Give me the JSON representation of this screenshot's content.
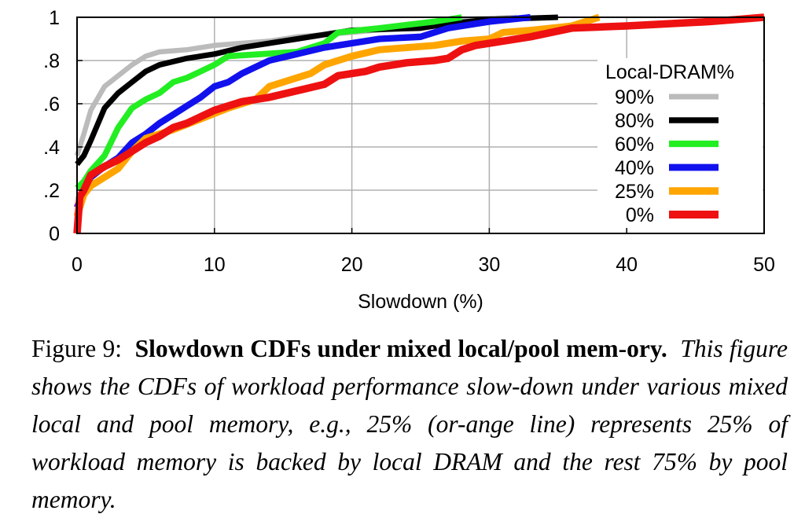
{
  "chart_data": {
    "type": "line",
    "xlabel": "Slowdown (%)",
    "ylabel": "",
    "xlim": [
      0,
      50
    ],
    "ylim": [
      0,
      1
    ],
    "x_ticks": [
      0,
      10,
      20,
      30,
      40,
      50
    ],
    "x_tick_labels": [
      "0",
      "10",
      "20",
      "30",
      "40",
      "50"
    ],
    "y_ticks": [
      0,
      0.2,
      0.4,
      0.6,
      0.8,
      1
    ],
    "y_tick_labels": [
      "0",
      ".2",
      ".4",
      ".6",
      ".8",
      "1"
    ],
    "grid": true,
    "legend_title": "Local-DRAM%",
    "legend_position": "right",
    "series": [
      {
        "name": "90%",
        "color": "#bbbbbb",
        "points": [
          [
            0,
            0.36
          ],
          [
            0.5,
            0.46
          ],
          [
            1,
            0.57
          ],
          [
            2,
            0.68
          ],
          [
            3,
            0.73
          ],
          [
            4,
            0.78
          ],
          [
            5,
            0.82
          ],
          [
            6,
            0.84
          ],
          [
            8,
            0.85
          ],
          [
            10,
            0.87
          ],
          [
            14,
            0.89
          ],
          [
            16,
            0.91
          ],
          [
            20,
            0.93
          ],
          [
            25,
            0.96
          ],
          [
            28,
            0.99
          ],
          [
            32,
            1.0
          ]
        ]
      },
      {
        "name": "80%",
        "color": "#000000",
        "points": [
          [
            0,
            0.32
          ],
          [
            0.5,
            0.36
          ],
          [
            1,
            0.43
          ],
          [
            2,
            0.58
          ],
          [
            3,
            0.65
          ],
          [
            4,
            0.7
          ],
          [
            5,
            0.75
          ],
          [
            6,
            0.78
          ],
          [
            8,
            0.81
          ],
          [
            10,
            0.83
          ],
          [
            12,
            0.86
          ],
          [
            14,
            0.88
          ],
          [
            17,
            0.91
          ],
          [
            20,
            0.94
          ],
          [
            25,
            0.95
          ],
          [
            27,
            0.97
          ],
          [
            30,
            0.99
          ],
          [
            35,
            1.0
          ]
        ]
      },
      {
        "name": "60%",
        "color": "#22ee22",
        "points": [
          [
            0,
            0.21
          ],
          [
            0.5,
            0.24
          ],
          [
            1,
            0.29
          ],
          [
            2,
            0.36
          ],
          [
            3,
            0.49
          ],
          [
            4,
            0.58
          ],
          [
            5,
            0.62
          ],
          [
            6,
            0.65
          ],
          [
            7,
            0.7
          ],
          [
            8,
            0.72
          ],
          [
            9,
            0.75
          ],
          [
            10,
            0.78
          ],
          [
            11,
            0.82
          ],
          [
            16,
            0.84
          ],
          [
            18,
            0.88
          ],
          [
            19,
            0.93
          ],
          [
            22,
            0.95
          ],
          [
            26,
            0.98
          ],
          [
            28,
            1.0
          ]
        ]
      },
      {
        "name": "40%",
        "color": "#1111ee",
        "points": [
          [
            0,
            0.12
          ],
          [
            0.5,
            0.2
          ],
          [
            1,
            0.26
          ],
          [
            2,
            0.31
          ],
          [
            3,
            0.35
          ],
          [
            4,
            0.42
          ],
          [
            5,
            0.46
          ],
          [
            6,
            0.51
          ],
          [
            7,
            0.55
          ],
          [
            8,
            0.59
          ],
          [
            9,
            0.63
          ],
          [
            10,
            0.68
          ],
          [
            11,
            0.7
          ],
          [
            12,
            0.74
          ],
          [
            13,
            0.77
          ],
          [
            14,
            0.8
          ],
          [
            16,
            0.83
          ],
          [
            18,
            0.86
          ],
          [
            20,
            0.88
          ],
          [
            22,
            0.9
          ],
          [
            25,
            0.91
          ],
          [
            27,
            0.95
          ],
          [
            30,
            0.98
          ],
          [
            33,
            1.0
          ]
        ]
      },
      {
        "name": "25%",
        "color": "#ffa500",
        "points": [
          [
            0,
            0.08
          ],
          [
            0.5,
            0.18
          ],
          [
            1,
            0.22
          ],
          [
            2,
            0.26
          ],
          [
            3,
            0.3
          ],
          [
            4,
            0.38
          ],
          [
            5,
            0.44
          ],
          [
            7,
            0.48
          ],
          [
            9,
            0.53
          ],
          [
            11,
            0.58
          ],
          [
            13,
            0.62
          ],
          [
            14,
            0.68
          ],
          [
            16,
            0.72
          ],
          [
            17,
            0.74
          ],
          [
            18,
            0.78
          ],
          [
            20,
            0.82
          ],
          [
            22,
            0.85
          ],
          [
            26,
            0.87
          ],
          [
            28,
            0.89
          ],
          [
            30,
            0.9
          ],
          [
            31,
            0.93
          ],
          [
            33,
            0.94
          ],
          [
            36,
            0.96
          ],
          [
            38,
            1.0
          ]
        ]
      },
      {
        "name": "0%",
        "color": "#ee1111",
        "points": [
          [
            0,
            0.0
          ],
          [
            0.2,
            0.17
          ],
          [
            0.5,
            0.2
          ],
          [
            1,
            0.27
          ],
          [
            2,
            0.31
          ],
          [
            3,
            0.34
          ],
          [
            4,
            0.38
          ],
          [
            5,
            0.42
          ],
          [
            6,
            0.45
          ],
          [
            7,
            0.49
          ],
          [
            8,
            0.51
          ],
          [
            9,
            0.54
          ],
          [
            10,
            0.57
          ],
          [
            11,
            0.59
          ],
          [
            12,
            0.61
          ],
          [
            14,
            0.63
          ],
          [
            16,
            0.66
          ],
          [
            18,
            0.69
          ],
          [
            19,
            0.73
          ],
          [
            21,
            0.75
          ],
          [
            22,
            0.77
          ],
          [
            24,
            0.79
          ],
          [
            26,
            0.8
          ],
          [
            27,
            0.81
          ],
          [
            28,
            0.85
          ],
          [
            29,
            0.87
          ],
          [
            31,
            0.89
          ],
          [
            33,
            0.91
          ],
          [
            36,
            0.95
          ],
          [
            40,
            0.96
          ],
          [
            43,
            0.97
          ],
          [
            46,
            0.98
          ],
          [
            48,
            0.99
          ],
          [
            50,
            1.0
          ]
        ]
      }
    ]
  },
  "caption": {
    "label": "Figure 9:",
    "title": "Slowdown CDFs under mixed local/pool mem-ory.",
    "body": "This figure shows the CDFs of workload performance slow-down under various mixed local and pool memory, e.g., 25% (or-ange line) represents 25% of workload memory is backed by local DRAM and the rest 75% by pool memory."
  }
}
